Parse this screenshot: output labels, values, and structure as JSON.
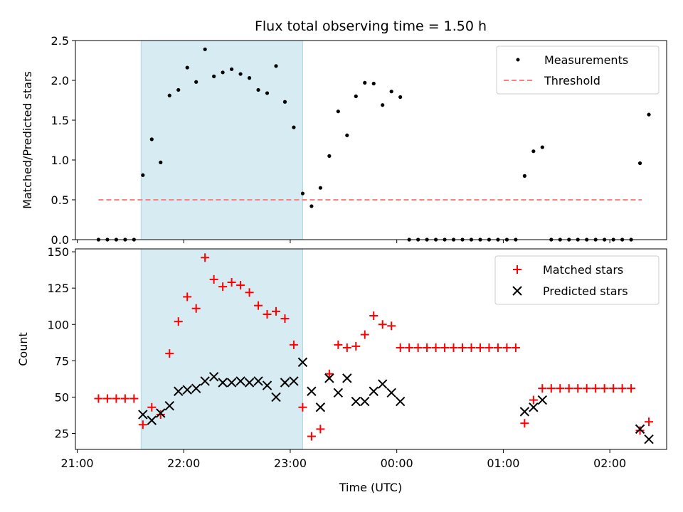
{
  "figure": {
    "title": "Flux total observing time = 1.50 h",
    "shaded_region": {
      "start": "21:36",
      "end": "23:07",
      "color": "#add8e6"
    }
  },
  "chart_data": [
    {
      "type": "scatter",
      "ylabel": "Matched/Predicted stars",
      "xlim": [
        "20:59",
        "02:32"
      ],
      "ylim": [
        0,
        2.5
      ],
      "yticks": [
        "0.0",
        "0.5",
        "1.0",
        "1.5",
        "2.0",
        "2.5"
      ],
      "legend_position": "top-right",
      "legend": {
        "measurements": "Measurements",
        "threshold": "Threshold"
      },
      "threshold": {
        "name": "Threshold",
        "value": 0.5,
        "x_start": "21:12",
        "x_end": "02:18",
        "color": "#ff7f7f"
      },
      "series": [
        {
          "name": "Measurements",
          "color": "#000000",
          "points": [
            [
              "21:12",
              0
            ],
            [
              "21:17",
              0
            ],
            [
              "21:22",
              0
            ],
            [
              "21:27",
              0
            ],
            [
              "21:32",
              0
            ],
            [
              "21:37",
              0.81
            ],
            [
              "21:42",
              1.26
            ],
            [
              "21:47",
              0.97
            ],
            [
              "21:52",
              1.81
            ],
            [
              "21:57",
              1.88
            ],
            [
              "22:02",
              2.16
            ],
            [
              "22:07",
              1.98
            ],
            [
              "22:12",
              2.39
            ],
            [
              "22:17",
              2.05
            ],
            [
              "22:22",
              2.1
            ],
            [
              "22:27",
              2.14
            ],
            [
              "22:32",
              2.08
            ],
            [
              "22:37",
              2.03
            ],
            [
              "22:42",
              1.88
            ],
            [
              "22:47",
              1.84
            ],
            [
              "22:52",
              2.18
            ],
            [
              "22:57",
              1.73
            ],
            [
              "23:02",
              1.41
            ],
            [
              "23:07",
              0.58
            ],
            [
              "23:12",
              0.42
            ],
            [
              "23:17",
              0.65
            ],
            [
              "23:22",
              1.05
            ],
            [
              "23:27",
              1.61
            ],
            [
              "23:32",
              1.31
            ],
            [
              "23:37",
              1.8
            ],
            [
              "23:42",
              1.97
            ],
            [
              "23:47",
              1.96
            ],
            [
              "23:52",
              1.69
            ],
            [
              "23:57",
              1.86
            ],
            [
              "00:02",
              1.79
            ],
            [
              "00:07",
              0
            ],
            [
              "00:12",
              0
            ],
            [
              "00:17",
              0
            ],
            [
              "00:22",
              0
            ],
            [
              "00:27",
              0
            ],
            [
              "00:32",
              0
            ],
            [
              "00:37",
              0
            ],
            [
              "00:42",
              0
            ],
            [
              "00:47",
              0
            ],
            [
              "00:52",
              0
            ],
            [
              "00:57",
              0
            ],
            [
              "01:02",
              0
            ],
            [
              "01:07",
              0
            ],
            [
              "01:12",
              0.8
            ],
            [
              "01:17",
              1.11
            ],
            [
              "01:22",
              1.16
            ],
            [
              "01:27",
              0
            ],
            [
              "01:32",
              0
            ],
            [
              "01:37",
              0
            ],
            [
              "01:42",
              0
            ],
            [
              "01:47",
              0
            ],
            [
              "01:52",
              0
            ],
            [
              "01:57",
              0
            ],
            [
              "02:02",
              0
            ],
            [
              "02:07",
              0
            ],
            [
              "02:12",
              0
            ],
            [
              "02:17",
              0.96
            ],
            [
              "02:22",
              1.57
            ]
          ]
        }
      ]
    },
    {
      "type": "scatter",
      "xlabel": "Time (UTC)",
      "ylabel": "Count",
      "xlim": [
        "20:59",
        "02:32"
      ],
      "ylim": [
        14,
        152
      ],
      "yticks": [
        "25",
        "50",
        "75",
        "100",
        "125",
        "150"
      ],
      "xticks": [
        "21:00",
        "22:00",
        "23:00",
        "00:00",
        "01:00",
        "02:00"
      ],
      "legend_position": "top-right",
      "legend": {
        "matched": "Matched stars",
        "predicted": "Predicted stars"
      },
      "series": [
        {
          "name": "Matched stars",
          "marker": "plus",
          "color": "#ff0000",
          "points": [
            [
              "21:12",
              49
            ],
            [
              "21:17",
              49
            ],
            [
              "21:22",
              49
            ],
            [
              "21:27",
              49
            ],
            [
              "21:32",
              49
            ],
            [
              "21:37",
              31
            ],
            [
              "21:42",
              43
            ],
            [
              "21:47",
              38
            ],
            [
              "21:52",
              80
            ],
            [
              "21:57",
              102
            ],
            [
              "22:02",
              119
            ],
            [
              "22:07",
              111
            ],
            [
              "22:12",
              146
            ],
            [
              "22:17",
              131
            ],
            [
              "22:22",
              126
            ],
            [
              "22:27",
              129
            ],
            [
              "22:32",
              127
            ],
            [
              "22:37",
              122
            ],
            [
              "22:42",
              113
            ],
            [
              "22:47",
              107
            ],
            [
              "22:52",
              109
            ],
            [
              "22:57",
              104
            ],
            [
              "23:02",
              86
            ],
            [
              "23:07",
              43
            ],
            [
              "23:12",
              23
            ],
            [
              "23:17",
              28
            ],
            [
              "23:22",
              66
            ],
            [
              "23:27",
              86
            ],
            [
              "23:32",
              84
            ],
            [
              "23:37",
              85
            ],
            [
              "23:42",
              93
            ],
            [
              "23:47",
              106
            ],
            [
              "23:52",
              100
            ],
            [
              "23:57",
              99
            ],
            [
              "00:02",
              84
            ],
            [
              "00:07",
              84
            ],
            [
              "00:12",
              84
            ],
            [
              "00:17",
              84
            ],
            [
              "00:22",
              84
            ],
            [
              "00:27",
              84
            ],
            [
              "00:32",
              84
            ],
            [
              "00:37",
              84
            ],
            [
              "00:42",
              84
            ],
            [
              "00:47",
              84
            ],
            [
              "00:52",
              84
            ],
            [
              "00:57",
              84
            ],
            [
              "01:02",
              84
            ],
            [
              "01:07",
              84
            ],
            [
              "01:12",
              32
            ],
            [
              "01:17",
              48
            ],
            [
              "01:22",
              56
            ],
            [
              "01:27",
              56
            ],
            [
              "01:32",
              56
            ],
            [
              "01:37",
              56
            ],
            [
              "01:42",
              56
            ],
            [
              "01:47",
              56
            ],
            [
              "01:52",
              56
            ],
            [
              "01:57",
              56
            ],
            [
              "02:02",
              56
            ],
            [
              "02:07",
              56
            ],
            [
              "02:12",
              56
            ],
            [
              "02:17",
              27
            ],
            [
              "02:22",
              33
            ]
          ]
        },
        {
          "name": "Predicted stars",
          "marker": "x",
          "color": "#000000",
          "points": [
            [
              "21:37",
              38
            ],
            [
              "21:42",
              34
            ],
            [
              "21:47",
              39
            ],
            [
              "21:52",
              44
            ],
            [
              "21:57",
              54
            ],
            [
              "22:02",
              55
            ],
            [
              "22:07",
              56
            ],
            [
              "22:12",
              61
            ],
            [
              "22:17",
              64
            ],
            [
              "22:22",
              60
            ],
            [
              "22:27",
              60
            ],
            [
              "22:32",
              61
            ],
            [
              "22:37",
              60
            ],
            [
              "22:42",
              61
            ],
            [
              "22:47",
              58
            ],
            [
              "22:52",
              50
            ],
            [
              "22:57",
              60
            ],
            [
              "23:02",
              61
            ],
            [
              "23:07",
              74
            ],
            [
              "23:12",
              54
            ],
            [
              "23:17",
              43
            ],
            [
              "23:22",
              63
            ],
            [
              "23:27",
              53
            ],
            [
              "23:32",
              63
            ],
            [
              "23:37",
              47
            ],
            [
              "23:42",
              47
            ],
            [
              "23:47",
              54
            ],
            [
              "23:52",
              59
            ],
            [
              "23:57",
              53
            ],
            [
              "00:02",
              47
            ],
            [
              "01:12",
              40
            ],
            [
              "01:17",
              43
            ],
            [
              "01:22",
              48
            ],
            [
              "02:17",
              28
            ],
            [
              "02:22",
              21
            ]
          ]
        }
      ]
    }
  ]
}
